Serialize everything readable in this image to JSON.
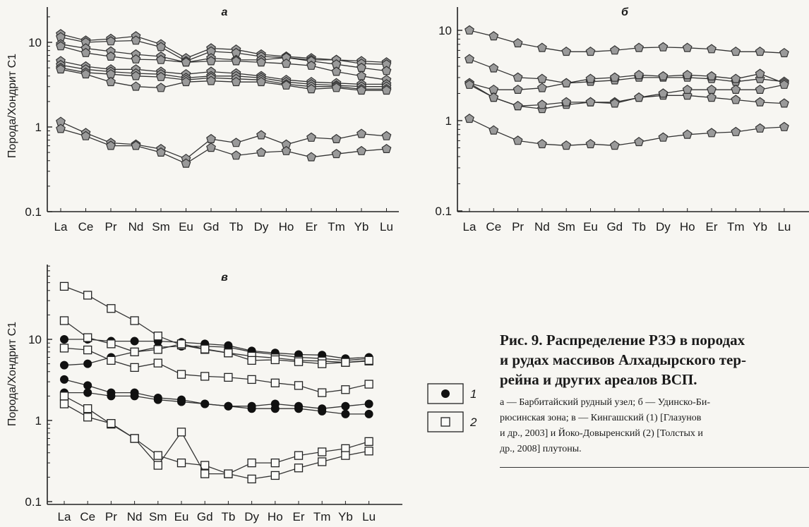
{
  "panels": [
    {
      "id": "a",
      "label": "а",
      "ylabel": "Порода/Хондрит С1",
      "yticks": [
        "0.1",
        "1",
        "10"
      ],
      "marker": "pentagon",
      "data_marker_color": "#9a9a9a"
    },
    {
      "id": "b",
      "label": "б",
      "ylabel": "",
      "yticks": [
        "0.1",
        "1",
        "10"
      ],
      "marker": "pentagon",
      "data_marker_color": "#9a9a9a"
    },
    {
      "id": "c",
      "label": "в",
      "ylabel": "Порода/Хондрит С1",
      "yticks": [
        "0.1",
        "1",
        "10"
      ],
      "marker": "mixed"
    }
  ],
  "legend": [
    {
      "symbol": "filled-circle",
      "label": "1"
    },
    {
      "symbol": "open-square",
      "label": "2"
    }
  ],
  "caption": {
    "title": "Рис. 9. Распределение РЗЭ в породах\nи рудах массивов Алхадырского тер-\nрейна и других ареалов ВСП.",
    "body": "а — Барбитайский рудный узел; б — Удинско-Би-\nрюсинская зона; в — Кингашский (1) [Глазунов\nи др., 2003] и Йоко-Довыренский (2) [Толстых и\nдр., 2008] плутоны."
  },
  "chart_data": [
    {
      "type": "line",
      "panel": "а",
      "title": "а",
      "xlabel": "",
      "ylabel": "Порода/Хондрит С1",
      "yscale": "log",
      "ylim": [
        0.1,
        15
      ],
      "categories": [
        "La",
        "Ce",
        "Pr",
        "Nd",
        "Sm",
        "Eu",
        "Gd",
        "Tb",
        "Dy",
        "Ho",
        "Er",
        "Tm",
        "Yb",
        "Lu"
      ],
      "series": [
        {
          "values": [
            12.5,
            10.5,
            11,
            11.8,
            9.5,
            6.5,
            8.5,
            8.2,
            7.2,
            6.8,
            6.5,
            6.2,
            6,
            5.8
          ]
        },
        {
          "values": [
            11.5,
            10,
            10.3,
            10.5,
            8.8,
            6,
            7.8,
            7.5,
            6.8,
            6.6,
            6.2,
            6.2,
            5.6,
            5.5
          ]
        },
        {
          "values": [
            9.5,
            8.5,
            7.8,
            7.2,
            6.8,
            5.8,
            6.5,
            6.2,
            6.2,
            6.6,
            6,
            5.5,
            5,
            4.6
          ]
        },
        {
          "values": [
            9,
            7.5,
            6.8,
            6.3,
            6.2,
            5.8,
            6,
            6,
            5.8,
            5.6,
            5.3,
            4.5,
            4,
            3.6
          ]
        },
        {
          "values": [
            6,
            5.2,
            4.8,
            4.8,
            4.5,
            4.2,
            4.5,
            4.3,
            4,
            3.6,
            3.4,
            3.3,
            3.2,
            3.2
          ]
        },
        {
          "values": [
            5.4,
            4.8,
            4.5,
            4.3,
            4.2,
            3.8,
            4,
            4,
            3.8,
            3.4,
            3.2,
            3.1,
            3,
            3
          ]
        },
        {
          "values": [
            5,
            4.4,
            4.2,
            4,
            3.9,
            3.6,
            3.8,
            3.7,
            3.6,
            3.2,
            3,
            3,
            2.8,
            2.8
          ]
        },
        {
          "values": [
            4.8,
            4.2,
            3.4,
            3,
            2.9,
            3.4,
            3.5,
            3.4,
            3.4,
            3.1,
            2.8,
            2.9,
            2.7,
            2.7
          ]
        },
        {
          "values": [
            1.15,
            0.85,
            0.65,
            0.62,
            0.55,
            0.42,
            0.72,
            0.65,
            0.8,
            0.62,
            0.75,
            0.72,
            0.83,
            0.78
          ]
        },
        {
          "values": [
            0.95,
            0.78,
            0.6,
            0.6,
            0.5,
            0.37,
            0.57,
            0.46,
            0.5,
            0.52,
            0.44,
            0.48,
            0.52,
            0.55
          ]
        }
      ]
    },
    {
      "type": "line",
      "panel": "б",
      "title": "б",
      "xlabel": "",
      "ylabel": "",
      "yscale": "log",
      "ylim": [
        0.1,
        15
      ],
      "categories": [
        "La",
        "Ce",
        "Pr",
        "Nd",
        "Sm",
        "Eu",
        "Gd",
        "Tb",
        "Dy",
        "Ho",
        "Er",
        "Tm",
        "Yb",
        "Lu"
      ],
      "series": [
        {
          "values": [
            10,
            8.6,
            7.2,
            6.4,
            5.8,
            5.8,
            6,
            6.4,
            6.5,
            6.4,
            6.2,
            5.8,
            5.8,
            5.6
          ]
        },
        {
          "values": [
            4.8,
            3.8,
            3,
            2.9,
            2.6,
            2.7,
            2.8,
            3,
            3,
            3,
            2.9,
            2.7,
            2.9,
            2.7
          ]
        },
        {
          "values": [
            2.6,
            2.2,
            2.2,
            2.3,
            2.6,
            2.9,
            3,
            3.2,
            3.1,
            3.2,
            3.1,
            2.9,
            3.3,
            2.6
          ]
        },
        {
          "values": [
            2.6,
            1.8,
            1.45,
            1.35,
            1.5,
            1.6,
            1.6,
            1.8,
            1.9,
            1.9,
            1.8,
            1.7,
            1.6,
            1.55
          ]
        },
        {
          "values": [
            2.5,
            1.8,
            1.45,
            1.5,
            1.6,
            1.6,
            1.55,
            1.8,
            2,
            2.2,
            2.2,
            2.2,
            2.2,
            2.5
          ]
        },
        {
          "values": [
            1.05,
            0.78,
            0.6,
            0.55,
            0.53,
            0.55,
            0.53,
            0.58,
            0.65,
            0.7,
            0.73,
            0.75,
            0.82,
            0.85
          ]
        }
      ]
    },
    {
      "type": "line",
      "panel": "в",
      "title": "в",
      "xlabel": "",
      "ylabel": "Порода/Хондрит С1",
      "yscale": "log",
      "ylim": [
        0.1,
        60
      ],
      "categories": [
        "La",
        "Ce",
        "Pr",
        "Nd",
        "Sm",
        "Eu",
        "Gd",
        "Tb",
        "Dy",
        "Ho",
        "Er",
        "Tm",
        "Yb",
        "Lu"
      ],
      "series": [
        {
          "name": "1",
          "marker": "filled-circle",
          "values": [
            10,
            10,
            9.5,
            9.5,
            9.5,
            9.2,
            8.8,
            8.4,
            7.2,
            6.8,
            6.5,
            6.4,
            5.8,
            6
          ]
        },
        {
          "name": "1",
          "marker": "filled-circle",
          "values": [
            4.8,
            5,
            6,
            7,
            8,
            8.2,
            8.2,
            8,
            7,
            6.5,
            6,
            5.8,
            5.5,
            5.8
          ]
        },
        {
          "name": "1",
          "marker": "filled-circle",
          "values": [
            3.2,
            2.7,
            2.2,
            2.2,
            1.9,
            1.8,
            1.6,
            1.5,
            1.5,
            1.6,
            1.5,
            1.4,
            1.5,
            1.6
          ]
        },
        {
          "name": "1",
          "marker": "filled-circle",
          "values": [
            2.2,
            2.2,
            2,
            2,
            1.8,
            1.7,
            1.6,
            1.5,
            1.4,
            1.4,
            1.4,
            1.3,
            1.2,
            1.2
          ]
        },
        {
          "name": "2",
          "marker": "open-square",
          "values": [
            45,
            35,
            24,
            17,
            11,
            8.5,
            7.5,
            6.8,
            6.2,
            5.9,
            5.5,
            5.4,
            5.2,
            5.4
          ]
        },
        {
          "name": "2",
          "marker": "open-square",
          "values": [
            17,
            10.5,
            8.8,
            7,
            7.5,
            8.8,
            7.6,
            6.8,
            5.5,
            5.6,
            5.3,
            5,
            5.2,
            5.5
          ]
        },
        {
          "name": "2",
          "marker": "open-square",
          "values": [
            7.8,
            7.4,
            5.5,
            4.5,
            5.1,
            3.7,
            3.5,
            3.4,
            3.2,
            2.9,
            2.7,
            2.2,
            2.4,
            2.8
          ]
        },
        {
          "name": "2",
          "marker": "open-square",
          "values": [
            2,
            1.4,
            0.9,
            0.6,
            0.37,
            0.3,
            0.28,
            0.22,
            0.3,
            0.3,
            0.37,
            0.41,
            0.45,
            0.55
          ]
        },
        {
          "name": "2",
          "marker": "open-square",
          "values": [
            1.6,
            1.1,
            0.92,
            0.6,
            0.28,
            0.72,
            0.22,
            0.22,
            0.19,
            0.21,
            0.26,
            0.31,
            0.37,
            0.42
          ]
        }
      ]
    }
  ]
}
